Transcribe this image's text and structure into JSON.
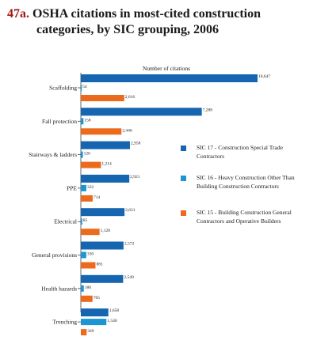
{
  "figure": {
    "number": "47a.",
    "title_line1": "OSHA citations in most-cited construction",
    "title_line2": "categories, by SIC grouping, 2006"
  },
  "chart_data": {
    "type": "bar",
    "orientation": "horizontal",
    "xlabel": "Number of citations",
    "categories": [
      "Scaffolding",
      "Fall protection",
      "Stairways & ladders",
      "PPE",
      "Electrical",
      "General provisions",
      "Health hazards",
      "Trenching"
    ],
    "series": [
      {
        "name": "SIC 17 - Construction Special Trade Contractors",
        "color": "#1565b0",
        "values": [
          10647,
          7288,
          2958,
          2921,
          2631,
          2572,
          2549,
          1658
        ],
        "labels": [
          "10,647",
          "7,288",
          "2,958",
          "2,921",
          "2,631",
          "2,572",
          "2,549",
          "1,658"
        ]
      },
      {
        "name": "SIC 16 - Heavy Construction Other Than Building Construction Contractors",
        "color": "#1c96d2",
        "values": [
          54,
          158,
          126,
          332,
          85,
          330,
          180,
          1540
        ],
        "labels": [
          "54",
          "158",
          "126",
          "332",
          "85",
          "330",
          "180",
          "1,540"
        ]
      },
      {
        "name": "SIC 15 - Building Construction General Contractors and Operative Builders",
        "color": "#ec6a1c",
        "values": [
          2616,
          2446,
          1214,
          714,
          1128,
          881,
          705,
          349
        ],
        "labels": [
          "2,616",
          "2,446",
          "1,214",
          "714",
          "1,128",
          "881",
          "705",
          "349"
        ]
      }
    ],
    "legend": [
      {
        "line1": "SIC 17 - Construction Special Trade",
        "line2": "Contractors",
        "color": "#1565b0"
      },
      {
        "line1": "SIC 16 - Heavy Construction Other Than",
        "line2": "Building Construction Contractors",
        "color": "#1c96d2"
      },
      {
        "line1": "SIC 15 - Building Construction General",
        "line2": "Contractors and Operative Builders",
        "color": "#ec6a1c"
      }
    ],
    "legend_position": "right",
    "grid": false
  }
}
